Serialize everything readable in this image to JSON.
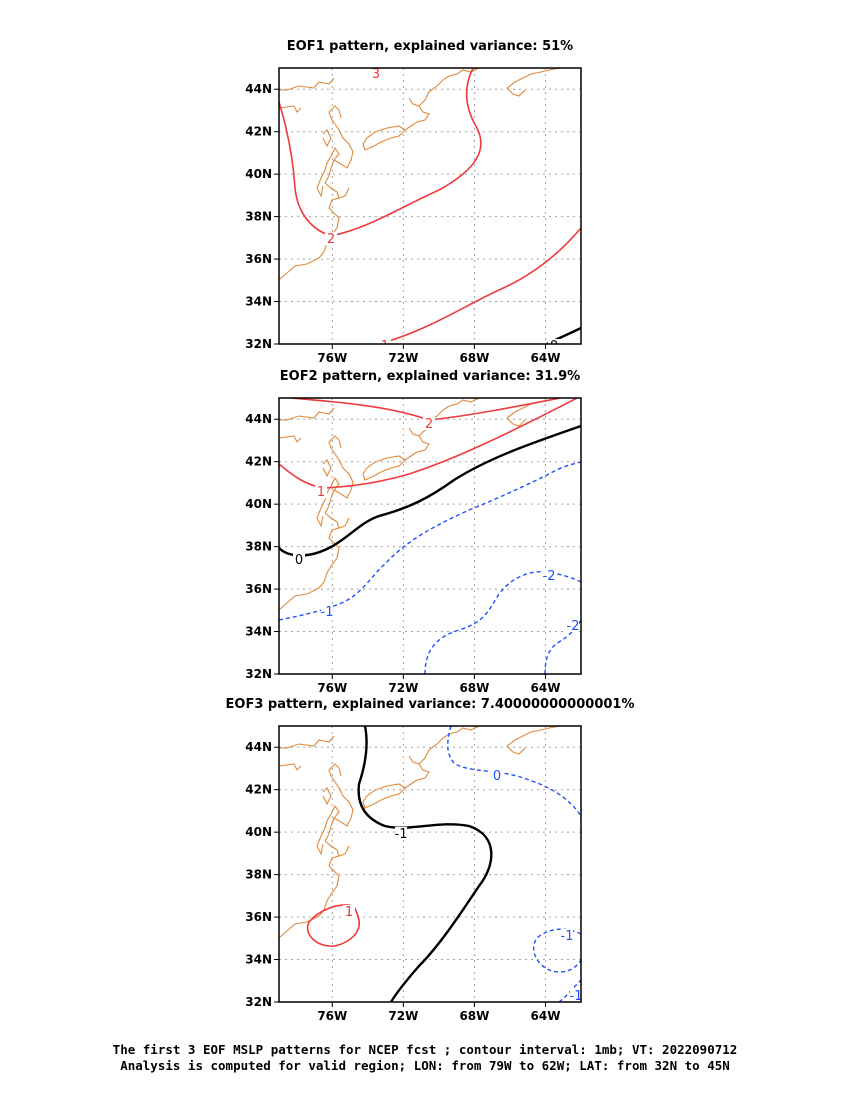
{
  "panels": [
    {
      "title": "EOF1 pattern, explained variance: 51%",
      "contour_labels": [
        "3",
        "2",
        "1",
        "0"
      ]
    },
    {
      "title": "EOF2 pattern, explained variance: 31.9%",
      "contour_labels": [
        "2",
        "1",
        "0",
        "-1",
        "-2",
        "-2"
      ]
    },
    {
      "title": "EOF3 pattern, explained variance: 7.40000000000001%",
      "contour_labels": [
        "-1",
        "0",
        "1",
        "-1",
        "-1"
      ]
    }
  ],
  "axes": {
    "lat_labels": [
      "44N",
      "42N",
      "40N",
      "38N",
      "36N",
      "34N",
      "32N"
    ],
    "lon_labels": [
      "76W",
      "72W",
      "68W",
      "64W"
    ]
  },
  "colors": {
    "coastline": "#e08a3c",
    "positive_contour": "#ee3b3b",
    "zero_contour": "#000000",
    "negative_contour": "#1f4fff",
    "grid": "#a0a0a0"
  },
  "caption": {
    "line1": "The first 3 EOF MSLP patterns for NCEP fcst ; contour interval: 1mb; VT: 2022090712",
    "line2": "Analysis is computed for valid region; LON: from 79W to 62W; LAT: from 32N to 45N"
  }
}
